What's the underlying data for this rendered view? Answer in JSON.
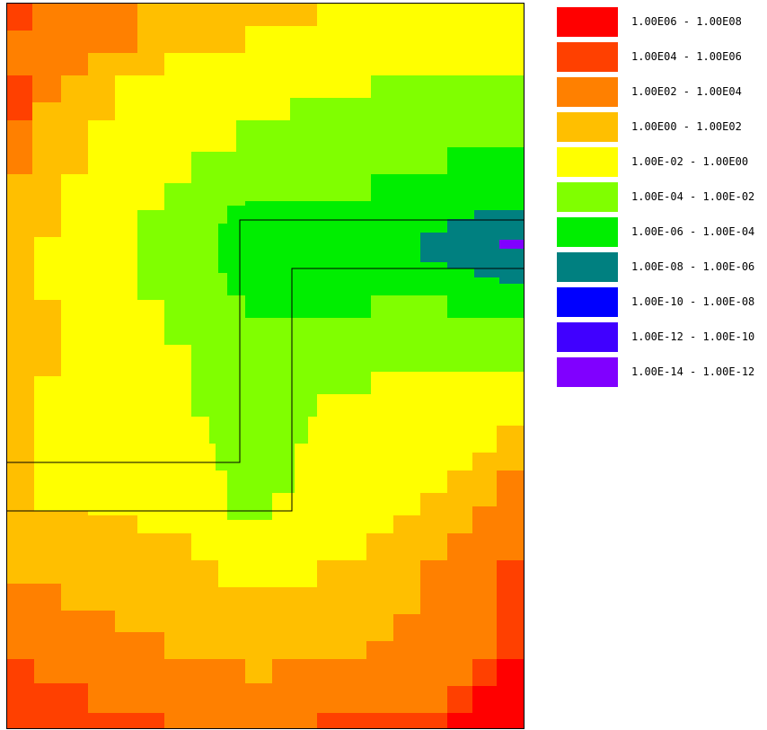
{
  "chart_data": {
    "type": "heatmap",
    "description_units": "classed contour map; legend lists value classes",
    "legend": [
      {
        "label": "1.00E06 - 1.00E08",
        "color": "#ff0000"
      },
      {
        "label": "1.00E04 - 1.00E06",
        "color": "#ff4000"
      },
      {
        "label": "1.00E02 - 1.00E04",
        "color": "#ff8000"
      },
      {
        "label": "1.00E00 - 1.00E02",
        "color": "#ffbf00"
      },
      {
        "label": "1.00E-02 - 1.00E00",
        "color": "#ffff00"
      },
      {
        "label": "1.00E-04 - 1.00E-02",
        "color": "#80ff00"
      },
      {
        "label": "1.00E-06 - 1.00E-04",
        "color": "#00ee00"
      },
      {
        "label": "1.00E-08 - 1.00E-06",
        "color": "#008080"
      },
      {
        "label": "1.00E-10 - 1.00E-08",
        "color": "#0000ff"
      },
      {
        "label": "1.00E-12 - 1.00E-10",
        "color": "#4000ff"
      },
      {
        "label": "1.00E-14 - 1.00E-12",
        "color": "#8000ff"
      }
    ],
    "legend_position": "right",
    "grid": false
  }
}
